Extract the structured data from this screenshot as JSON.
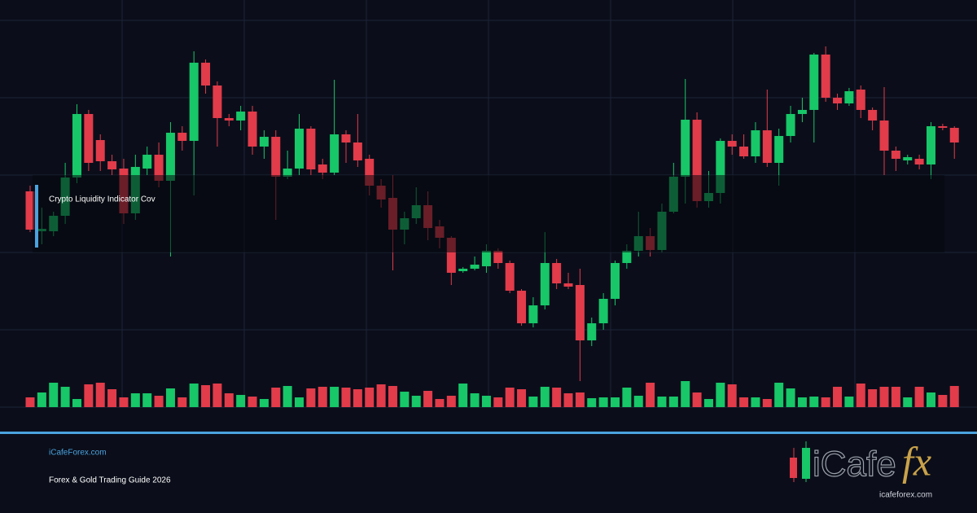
{
  "chart_data": {
    "type": "candlestick",
    "ylim": [
      0,
      500
    ],
    "volume_lim": [
      0,
      100
    ],
    "up_color": "#17c768",
    "down_color": "#e23b4a",
    "indicator_label": "Crypto Liquidity Indicator Cov",
    "open": [
      265,
      216,
      216,
      235,
      282,
      360,
      328,
      302,
      293,
      238,
      293,
      310,
      278,
      337,
      327,
      423,
      395,
      355,
      352,
      363,
      320,
      332,
      283,
      293,
      342,
      298,
      288,
      335,
      325,
      305,
      272,
      257,
      218,
      232,
      248,
      222,
      208,
      167,
      170,
      173,
      192,
      177,
      143,
      103,
      125,
      177,
      152,
      150,
      82,
      103,
      133,
      177,
      192,
      210,
      193,
      240,
      283,
      353,
      253,
      263,
      327,
      320,
      308,
      340,
      300,
      333,
      360,
      365,
      433,
      380,
      373,
      390,
      365,
      352,
      315,
      303,
      305,
      298,
      345,
      343
    ],
    "high": [
      272,
      245,
      240,
      300,
      372,
      365,
      335,
      310,
      305,
      310,
      320,
      325,
      350,
      345,
      437,
      427,
      400,
      360,
      370,
      370,
      340,
      340,
      315,
      360,
      345,
      305,
      402,
      340,
      360,
      310,
      280,
      285,
      240,
      270,
      265,
      230,
      210,
      172,
      185,
      200,
      195,
      180,
      145,
      135,
      215,
      182,
      165,
      170,
      110,
      140,
      180,
      200,
      240,
      220,
      250,
      300,
      403,
      362,
      290,
      330,
      335,
      335,
      350,
      390,
      342,
      370,
      380,
      435,
      443,
      385,
      392,
      395,
      368,
      393,
      320,
      310,
      310,
      350,
      348,
      345
    ],
    "low": [
      215,
      200,
      210,
      225,
      275,
      290,
      290,
      285,
      225,
      230,
      285,
      270,
      185,
      315,
      260,
      385,
      320,
      345,
      340,
      310,
      305,
      230,
      280,
      285,
      285,
      280,
      285,
      300,
      295,
      260,
      245,
      168,
      200,
      225,
      205,
      195,
      150,
      165,
      168,
      165,
      170,
      140,
      100,
      98,
      120,
      145,
      145,
      32,
      75,
      95,
      125,
      170,
      185,
      185,
      190,
      238,
      250,
      245,
      245,
      250,
      310,
      305,
      300,
      295,
      272,
      325,
      350,
      325,
      375,
      365,
      370,
      355,
      340,
      285,
      290,
      298,
      292,
      280,
      340,
      305
    ],
    "close": [
      218,
      219,
      235,
      282,
      360,
      300,
      302,
      292,
      238,
      295,
      310,
      278,
      337,
      327,
      423,
      395,
      355,
      352,
      363,
      320,
      332,
      283,
      293,
      342,
      292,
      288,
      335,
      325,
      303,
      272,
      255,
      218,
      232,
      248,
      220,
      208,
      165,
      170,
      175,
      192,
      177,
      143,
      103,
      125,
      177,
      152,
      148,
      82,
      103,
      133,
      177,
      192,
      210,
      193,
      240,
      283,
      353,
      253,
      263,
      327,
      320,
      308,
      340,
      300,
      333,
      360,
      365,
      433,
      380,
      373,
      388,
      365,
      352,
      315,
      305,
      307,
      298,
      345,
      343,
      325
    ],
    "volume": [
      12,
      18,
      30,
      25,
      10,
      28,
      30,
      22,
      12,
      17,
      17,
      14,
      23,
      12,
      29,
      27,
      29,
      17,
      15,
      13,
      10,
      24,
      26,
      12,
      23,
      25,
      25,
      24,
      22,
      24,
      28,
      26,
      19,
      14,
      20,
      10,
      14,
      29,
      17,
      14,
      12,
      24,
      22,
      13,
      25,
      24,
      17,
      18,
      11,
      12,
      12,
      24,
      14,
      30,
      13,
      13,
      32,
      18,
      10,
      30,
      28,
      12,
      12,
      10,
      30,
      23,
      12,
      13,
      12,
      25,
      13,
      29,
      22,
      25,
      25,
      12,
      25,
      18,
      15,
      26
    ]
  },
  "footer": {
    "site": "iCafeForex.com",
    "subtitle": "Forex & Gold Trading Guide 2026"
  },
  "logo": {
    "brand": "iCafe",
    "accent": "fx",
    "url": "icafeforex.com"
  }
}
